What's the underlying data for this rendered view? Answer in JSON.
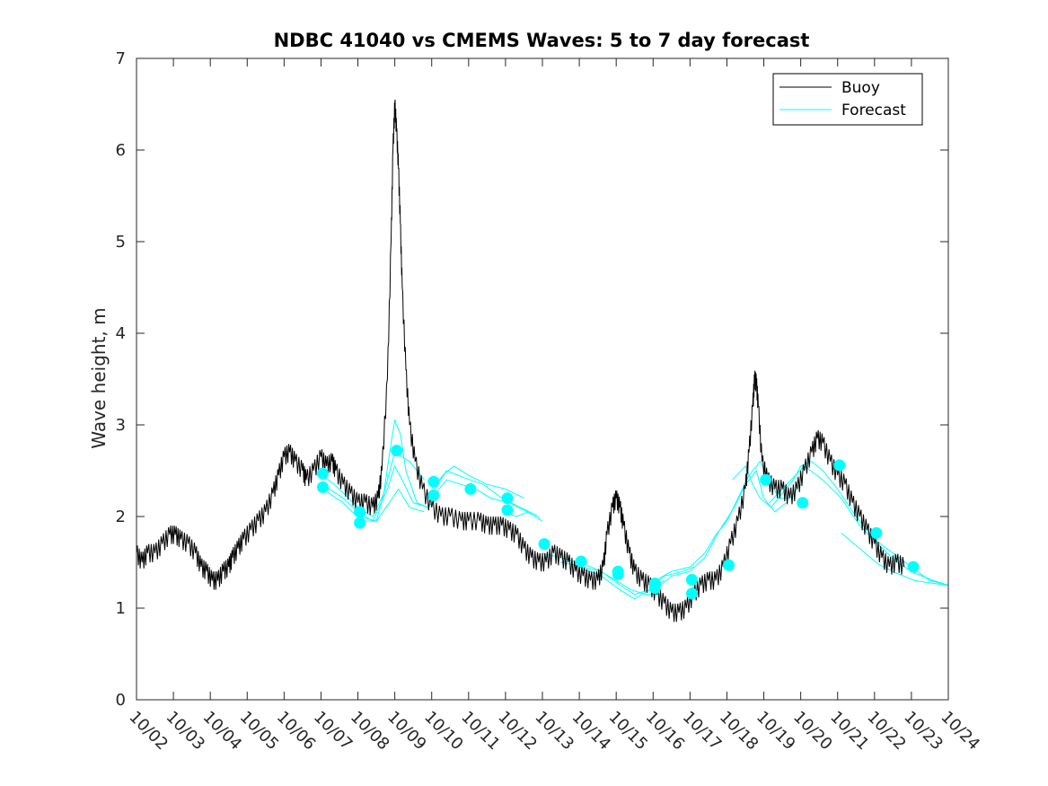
{
  "chart_data": {
    "type": "line",
    "title": "NDBC 41040 vs CMEMS Waves: 5 to 7 day forecast",
    "xlabel": "",
    "ylabel": "Wave height, m",
    "xlim": [
      0,
      22
    ],
    "ylim": [
      0,
      7
    ],
    "x_tick_labels": [
      "10/02",
      "10/03",
      "10/04",
      "10/05",
      "10/06",
      "10/07",
      "10/08",
      "10/09",
      "10/10",
      "10/11",
      "10/12",
      "10/13",
      "10/14",
      "10/15",
      "10/16",
      "10/17",
      "10/18",
      "10/19",
      "10/20",
      "10/21",
      "10/22",
      "10/23",
      "10/24"
    ],
    "y_ticks": [
      0,
      1,
      2,
      3,
      4,
      5,
      6,
      7
    ],
    "grid": false,
    "legend": {
      "position": "top-right",
      "entries": [
        {
          "label": "Buoy",
          "color": "#000000"
        },
        {
          "label": "Forecast",
          "color": "#00ffff"
        }
      ]
    },
    "series": [
      {
        "name": "Buoy",
        "color": "#000000",
        "points": [
          [
            0.0,
            1.6
          ],
          [
            0.15,
            1.5
          ],
          [
            0.3,
            1.6
          ],
          [
            0.5,
            1.6
          ],
          [
            0.7,
            1.7
          ],
          [
            0.9,
            1.8
          ],
          [
            1.05,
            1.8
          ],
          [
            1.2,
            1.75
          ],
          [
            1.4,
            1.7
          ],
          [
            1.6,
            1.6
          ],
          [
            1.75,
            1.45
          ],
          [
            1.9,
            1.4
          ],
          [
            2.05,
            1.3
          ],
          [
            2.2,
            1.3
          ],
          [
            2.35,
            1.4
          ],
          [
            2.5,
            1.45
          ],
          [
            2.6,
            1.55
          ],
          [
            2.75,
            1.65
          ],
          [
            2.9,
            1.75
          ],
          [
            3.1,
            1.85
          ],
          [
            3.3,
            1.95
          ],
          [
            3.5,
            2.05
          ],
          [
            3.7,
            2.25
          ],
          [
            3.85,
            2.45
          ],
          [
            4.0,
            2.65
          ],
          [
            4.15,
            2.7
          ],
          [
            4.3,
            2.6
          ],
          [
            4.5,
            2.5
          ],
          [
            4.6,
            2.4
          ],
          [
            4.8,
            2.5
          ],
          [
            5.0,
            2.65
          ],
          [
            5.15,
            2.55
          ],
          [
            5.3,
            2.6
          ],
          [
            5.4,
            2.5
          ],
          [
            5.6,
            2.35
          ],
          [
            5.8,
            2.25
          ],
          [
            6.0,
            2.15
          ],
          [
            6.2,
            2.15
          ],
          [
            6.4,
            2.1
          ],
          [
            6.55,
            2.2
          ],
          [
            6.65,
            2.5
          ],
          [
            6.8,
            3.5
          ],
          [
            6.9,
            5.0
          ],
          [
            6.95,
            6.0
          ],
          [
            7.0,
            6.5
          ],
          [
            7.05,
            6.2
          ],
          [
            7.1,
            5.8
          ],
          [
            7.15,
            5.2
          ],
          [
            7.2,
            4.5
          ],
          [
            7.3,
            3.6
          ],
          [
            7.4,
            3.0
          ],
          [
            7.55,
            2.6
          ],
          [
            7.75,
            2.3
          ],
          [
            8.0,
            2.1
          ],
          [
            8.25,
            2.0
          ],
          [
            8.5,
            2.0
          ],
          [
            8.8,
            1.95
          ],
          [
            9.0,
            1.95
          ],
          [
            9.3,
            1.95
          ],
          [
            9.5,
            1.9
          ],
          [
            9.7,
            1.9
          ],
          [
            9.9,
            1.9
          ],
          [
            10.1,
            1.85
          ],
          [
            10.3,
            1.8
          ],
          [
            10.5,
            1.65
          ],
          [
            10.7,
            1.55
          ],
          [
            10.9,
            1.5
          ],
          [
            11.1,
            1.5
          ],
          [
            11.3,
            1.6
          ],
          [
            11.5,
            1.55
          ],
          [
            11.7,
            1.5
          ],
          [
            11.9,
            1.4
          ],
          [
            12.1,
            1.35
          ],
          [
            12.3,
            1.3
          ],
          [
            12.5,
            1.3
          ],
          [
            12.65,
            1.45
          ],
          [
            12.75,
            1.8
          ],
          [
            12.9,
            2.1
          ],
          [
            13.0,
            2.2
          ],
          [
            13.1,
            2.1
          ],
          [
            13.2,
            1.9
          ],
          [
            13.35,
            1.6
          ],
          [
            13.5,
            1.4
          ],
          [
            13.7,
            1.3
          ],
          [
            13.9,
            1.25
          ],
          [
            14.1,
            1.15
          ],
          [
            14.3,
            1.05
          ],
          [
            14.5,
            0.95
          ],
          [
            14.7,
            0.95
          ],
          [
            14.9,
            1.0
          ],
          [
            15.1,
            1.15
          ],
          [
            15.3,
            1.25
          ],
          [
            15.5,
            1.3
          ],
          [
            15.7,
            1.3
          ],
          [
            15.9,
            1.45
          ],
          [
            16.1,
            1.7
          ],
          [
            16.3,
            1.95
          ],
          [
            16.5,
            2.3
          ],
          [
            16.6,
            2.7
          ],
          [
            16.7,
            3.2
          ],
          [
            16.75,
            3.5
          ],
          [
            16.8,
            3.45
          ],
          [
            16.85,
            3.2
          ],
          [
            16.95,
            2.6
          ],
          [
            17.1,
            2.4
          ],
          [
            17.3,
            2.3
          ],
          [
            17.5,
            2.3
          ],
          [
            17.7,
            2.2
          ],
          [
            17.9,
            2.3
          ],
          [
            18.1,
            2.5
          ],
          [
            18.3,
            2.7
          ],
          [
            18.45,
            2.85
          ],
          [
            18.6,
            2.8
          ],
          [
            18.8,
            2.6
          ],
          [
            19.0,
            2.45
          ],
          [
            19.2,
            2.35
          ],
          [
            19.4,
            2.15
          ],
          [
            19.6,
            2.0
          ],
          [
            19.8,
            1.85
          ],
          [
            20.0,
            1.7
          ],
          [
            20.2,
            1.55
          ],
          [
            20.4,
            1.45
          ],
          [
            20.6,
            1.5
          ],
          [
            20.8,
            1.45
          ]
        ]
      },
      {
        "name": "Forecast",
        "color": "#00ffff",
        "lines": [
          [
            [
              5.05,
              2.45
            ],
            [
              5.5,
              2.3
            ],
            [
              6.0,
              2.1
            ],
            [
              6.4,
              2.0
            ],
            [
              6.7,
              2.25
            ],
            [
              6.9,
              2.8
            ],
            [
              7.0,
              3.05
            ],
            [
              7.15,
              2.9
            ],
            [
              7.3,
              2.5
            ],
            [
              7.6,
              2.15
            ],
            [
              7.9,
              2.1
            ],
            [
              8.2,
              2.25
            ]
          ],
          [
            [
              5.05,
              2.35
            ],
            [
              5.6,
              2.2
            ],
            [
              6.0,
              2.05
            ],
            [
              6.4,
              1.95
            ],
            [
              6.8,
              2.3
            ],
            [
              7.0,
              2.55
            ],
            [
              7.2,
              2.4
            ],
            [
              7.5,
              2.15
            ],
            [
              7.9,
              2.1
            ]
          ],
          [
            [
              5.05,
              2.3
            ],
            [
              5.6,
              2.15
            ],
            [
              6.1,
              1.95
            ],
            [
              6.5,
              1.95
            ],
            [
              6.85,
              2.15
            ],
            [
              7.1,
              2.3
            ],
            [
              7.4,
              2.1
            ],
            [
              7.8,
              2.05
            ]
          ],
          [
            [
              6.05,
              2.0
            ],
            [
              6.5,
              1.95
            ],
            [
              6.8,
              2.4
            ],
            [
              7.0,
              2.7
            ],
            [
              7.4,
              2.6
            ],
            [
              7.8,
              2.4
            ]
          ],
          [
            [
              8.0,
              2.3
            ],
            [
              8.3,
              2.45
            ],
            [
              8.6,
              2.55
            ],
            [
              9.0,
              2.45
            ],
            [
              9.5,
              2.35
            ],
            [
              10.0,
              2.3
            ],
            [
              10.5,
              2.2
            ]
          ],
          [
            [
              8.0,
              2.2
            ],
            [
              8.4,
              2.4
            ],
            [
              8.8,
              2.35
            ],
            [
              9.2,
              2.3
            ],
            [
              9.6,
              2.2
            ],
            [
              10.1,
              2.15
            ],
            [
              10.6,
              2.05
            ]
          ],
          [
            [
              8.0,
              2.25
            ],
            [
              8.4,
              2.5
            ],
            [
              8.9,
              2.42
            ],
            [
              9.4,
              2.35
            ],
            [
              9.9,
              2.2
            ],
            [
              10.4,
              2.1
            ],
            [
              10.9,
              2.0
            ]
          ],
          [
            [
              9.95,
              2.05
            ],
            [
              10.3,
              2.0
            ],
            [
              10.6,
              2.05
            ],
            [
              11.0,
              1.95
            ]
          ],
          [
            [
              11.0,
              1.6
            ],
            [
              11.5,
              1.55
            ],
            [
              12.0,
              1.5
            ],
            [
              12.5,
              1.42
            ],
            [
              13.0,
              1.3
            ],
            [
              13.4,
              1.2
            ],
            [
              13.8,
              1.15
            ],
            [
              14.2,
              1.15
            ]
          ],
          [
            [
              11.5,
              1.5
            ],
            [
              12.1,
              1.45
            ],
            [
              12.6,
              1.4
            ],
            [
              13.1,
              1.25
            ],
            [
              13.5,
              1.15
            ],
            [
              13.9,
              1.2
            ],
            [
              14.3,
              1.3
            ]
          ],
          [
            [
              12.0,
              1.45
            ],
            [
              12.6,
              1.35
            ],
            [
              13.1,
              1.2
            ],
            [
              13.5,
              1.1
            ],
            [
              13.9,
              1.2
            ],
            [
              14.3,
              1.35
            ],
            [
              14.8,
              1.4
            ],
            [
              15.1,
              1.45
            ]
          ],
          [
            [
              14.05,
              1.3
            ],
            [
              14.5,
              1.4
            ],
            [
              15.0,
              1.45
            ],
            [
              15.4,
              1.6
            ],
            [
              15.7,
              1.8
            ],
            [
              16.0,
              1.95
            ],
            [
              16.3,
              2.2
            ],
            [
              16.6,
              2.45
            ],
            [
              16.9,
              2.6
            ],
            [
              17.1,
              2.45
            ],
            [
              17.4,
              2.2
            ],
            [
              17.7,
              2.2
            ],
            [
              18.0,
              2.35
            ]
          ],
          [
            [
              14.05,
              1.2
            ],
            [
              14.5,
              1.35
            ],
            [
              15.0,
              1.4
            ],
            [
              15.4,
              1.55
            ],
            [
              15.8,
              1.85
            ],
            [
              16.2,
              2.1
            ],
            [
              16.5,
              2.35
            ],
            [
              16.8,
              2.5
            ],
            [
              17.0,
              2.2
            ],
            [
              17.3,
              2.05
            ],
            [
              17.6,
              2.15
            ]
          ],
          [
            [
              16.15,
              2.4
            ],
            [
              16.5,
              2.55
            ],
            [
              16.7,
              2.35
            ],
            [
              16.9,
              2.2
            ],
            [
              17.2,
              2.1
            ],
            [
              17.5,
              2.25
            ],
            [
              17.8,
              2.4
            ],
            [
              18.0,
              2.55
            ],
            [
              18.3,
              2.6
            ],
            [
              18.6,
              2.5
            ],
            [
              19.0,
              2.3
            ],
            [
              19.5,
              2.0
            ],
            [
              20.0,
              1.75
            ],
            [
              20.5,
              1.6
            ],
            [
              21.0,
              1.45
            ],
            [
              21.5,
              1.3
            ],
            [
              22.0,
              1.25
            ]
          ],
          [
            [
              17.15,
              2.15
            ],
            [
              17.5,
              2.3
            ],
            [
              18.1,
              2.55
            ],
            [
              18.6,
              2.4
            ],
            [
              19.1,
              2.2
            ],
            [
              19.6,
              1.9
            ],
            [
              20.1,
              1.7
            ],
            [
              20.6,
              1.5
            ],
            [
              21.1,
              1.38
            ],
            [
              21.6,
              1.3
            ],
            [
              22.0,
              1.25
            ]
          ],
          [
            [
              19.1,
              1.82
            ],
            [
              19.6,
              1.65
            ],
            [
              20.1,
              1.48
            ],
            [
              20.6,
              1.38
            ],
            [
              21.1,
              1.3
            ],
            [
              21.6,
              1.27
            ],
            [
              22.0,
              1.25
            ]
          ]
        ],
        "markers": [
          [
            5.05,
            2.47
          ],
          [
            5.05,
            2.32
          ],
          [
            6.05,
            2.05
          ],
          [
            6.05,
            1.93
          ],
          [
            7.05,
            2.72
          ],
          [
            8.05,
            2.38
          ],
          [
            8.05,
            2.23
          ],
          [
            9.05,
            2.3
          ],
          [
            10.05,
            2.2
          ],
          [
            10.05,
            2.07
          ],
          [
            11.05,
            1.7
          ],
          [
            12.05,
            1.51
          ],
          [
            13.05,
            1.4
          ],
          [
            13.05,
            1.37
          ],
          [
            14.05,
            1.27
          ],
          [
            14.05,
            1.22
          ],
          [
            15.05,
            1.31
          ],
          [
            15.05,
            1.16
          ],
          [
            16.05,
            1.47
          ],
          [
            17.05,
            2.4
          ],
          [
            18.05,
            2.15
          ],
          [
            19.05,
            2.56
          ],
          [
            20.05,
            1.82
          ],
          [
            21.05,
            1.45
          ]
        ]
      }
    ]
  }
}
